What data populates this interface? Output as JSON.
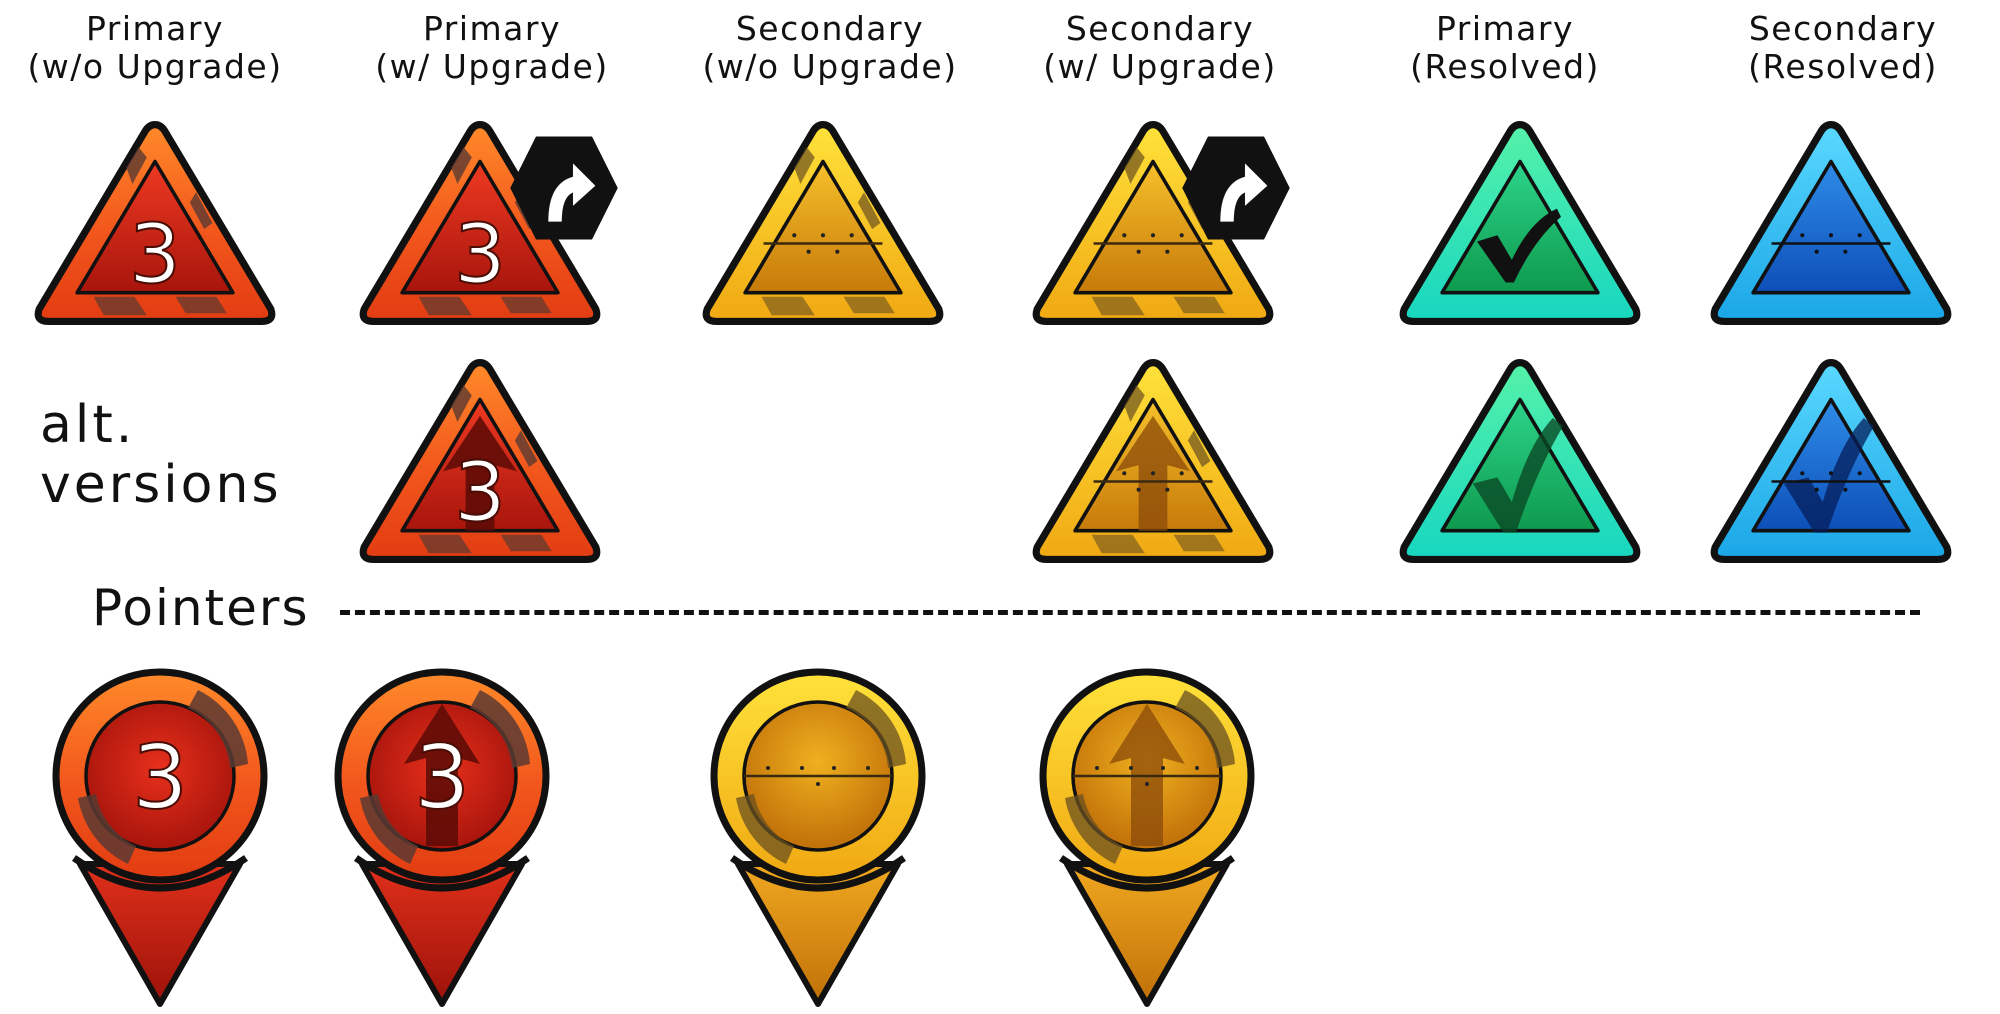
{
  "columns": [
    {
      "line1": "Primary",
      "line2": "(w/o Upgrade)"
    },
    {
      "line1": "Primary",
      "line2": "(w/ Upgrade)"
    },
    {
      "line1": "Secondary",
      "line2": "(w/o Upgrade)"
    },
    {
      "line1": "Secondary",
      "line2": "(w/ Upgrade)"
    },
    {
      "line1": "Primary",
      "line2": "(Resolved)"
    },
    {
      "line1": "Secondary",
      "line2": "(Resolved)"
    }
  ],
  "alt_label": {
    "line1": "alt.",
    "line2": "versions"
  },
  "pointers_heading": "Pointers",
  "primary_number": "3",
  "colors": {
    "primary": "#e8401c",
    "secondary": "#f2c21a",
    "resolved_primary": "#25e0a0",
    "resolved_secondary": "#2ab8ec",
    "outline": "#111111"
  },
  "icons": {
    "row1": [
      "primary-number-icon",
      "primary-number-upgrade-icon",
      "secondary-icon",
      "secondary-upgrade-icon",
      "primary-resolved-check-icon",
      "secondary-resolved-icon"
    ],
    "row2": [
      "primary-alt-arrow-icon",
      "secondary-alt-arrow-icon",
      "primary-resolved-alt-check-icon",
      "secondary-resolved-alt-check-icon"
    ],
    "pointers": [
      "primary-pointer-number-icon",
      "primary-pointer-arrow-icon",
      "secondary-pointer-icon",
      "secondary-pointer-arrow-icon"
    ]
  }
}
